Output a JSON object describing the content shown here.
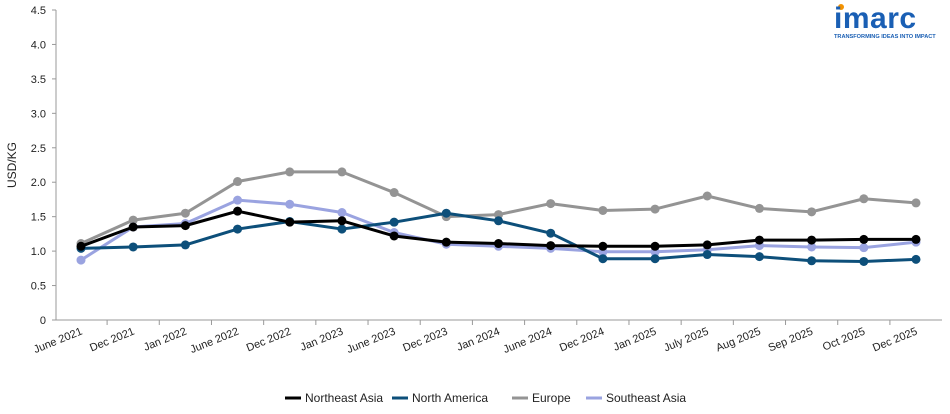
{
  "logo": {
    "name": "imarc",
    "tagline": "TRANSFORMING IDEAS INTO IMPACT",
    "accent": "#f39200",
    "color": "#1a5fb4"
  },
  "chart_data": {
    "type": "line",
    "title": "",
    "xlabel": "",
    "ylabel": "USD/KG",
    "ylim": [
      0,
      4.5
    ],
    "yticks": [
      "0",
      "0.5",
      "1.0",
      "1.5",
      "2.0",
      "2.5",
      "3.0",
      "3.5",
      "4.0",
      "4.5"
    ],
    "categories": [
      "June 2021",
      "Dec 2021",
      "Jan 2022",
      "June 2022",
      "Dec 2022",
      "Jan 2023",
      "June 2023",
      "Dec 2023",
      "Jan 2024",
      "June 2024",
      "Dec 2024",
      "Jan 2025",
      "July 2025",
      "Aug 2025",
      "Sep 2025",
      "Oct 2025",
      "Dec 2025"
    ],
    "legend_position": "bottom",
    "grid": false,
    "series": [
      {
        "name": "Northeast Asia",
        "color": "#000000",
        "values": [
          1.07,
          1.35,
          1.37,
          1.58,
          1.42,
          1.44,
          1.22,
          1.13,
          1.11,
          1.08,
          1.07,
          1.07,
          1.09,
          1.16,
          1.16,
          1.17,
          1.17
        ]
      },
      {
        "name": "North America",
        "color": "#0d4f7a",
        "values": [
          1.04,
          1.06,
          1.09,
          1.32,
          1.43,
          1.32,
          1.42,
          1.55,
          1.44,
          1.26,
          0.89,
          0.89,
          0.95,
          0.92,
          0.86,
          0.85,
          0.88
        ]
      },
      {
        "name": "Europe",
        "color": "#949494",
        "values": [
          1.11,
          1.45,
          1.55,
          2.01,
          2.15,
          2.15,
          1.85,
          1.5,
          1.53,
          1.69,
          1.59,
          1.61,
          1.8,
          1.62,
          1.57,
          1.76,
          1.7
        ]
      },
      {
        "name": "Southeast Asia",
        "color": "#9aa3e0",
        "values": [
          0.87,
          1.35,
          1.4,
          1.74,
          1.68,
          1.56,
          1.27,
          1.1,
          1.07,
          1.04,
          0.99,
          0.99,
          1.02,
          1.08,
          1.06,
          1.05,
          1.13
        ]
      }
    ]
  }
}
